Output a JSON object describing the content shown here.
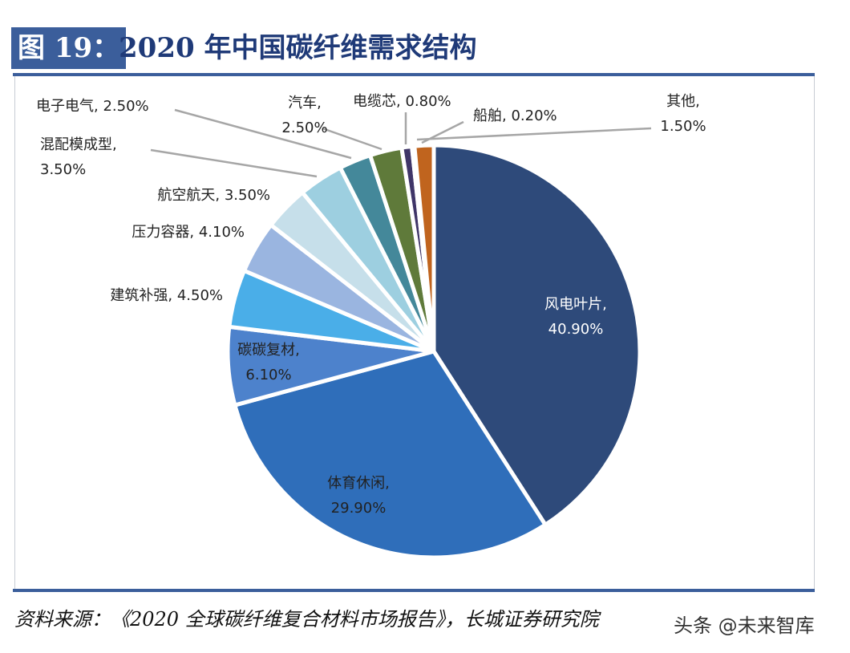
{
  "figure": {
    "number_label": "图 19：",
    "title": "2020 年中国碳纤维需求结构",
    "source": "资料来源：《2020 全球碳纤维复合材料市场报告》，长城证券研究院",
    "watermark": "头条 @未来智库"
  },
  "chart_data": {
    "type": "pie",
    "title": "2020 年中国碳纤维需求结构",
    "start": "top",
    "direction": "clockwise",
    "unit": "%",
    "slices": [
      {
        "label": "风电叶片",
        "value": 40.9,
        "text": "40.90%",
        "color": "#2E4A7A"
      },
      {
        "label": "体育休闲",
        "value": 29.9,
        "text": "29.90%",
        "color": "#2F6EBA"
      },
      {
        "label": "碳碳复材",
        "value": 6.1,
        "text": "6.10%",
        "color": "#4D82CC"
      },
      {
        "label": "建筑补强",
        "value": 4.5,
        "text": "4.50%",
        "color": "#4AAEE8"
      },
      {
        "label": "压力容器",
        "value": 4.1,
        "text": "4.10%",
        "color": "#9AB5E0"
      },
      {
        "label": "航空航天",
        "value": 3.5,
        "text": "3.50%",
        "color": "#C6DFEA"
      },
      {
        "label": "混配模成型",
        "value": 3.5,
        "text": "3.50%",
        "color": "#9DCFE0"
      },
      {
        "label": "电子电气",
        "value": 2.5,
        "text": "2.50%",
        "color": "#44889A"
      },
      {
        "label": "汽车",
        "value": 2.5,
        "text": "2.50%",
        "color": "#5F7A3A"
      },
      {
        "label": "电缆芯",
        "value": 0.8,
        "text": "0.80%",
        "color": "#3F3568"
      },
      {
        "label": "船舶",
        "value": 0.2,
        "text": "0.20%",
        "color": "#8A3A8A"
      },
      {
        "label": "其他",
        "value": 1.5,
        "text": "1.50%",
        "color": "#C0641E"
      }
    ]
  }
}
